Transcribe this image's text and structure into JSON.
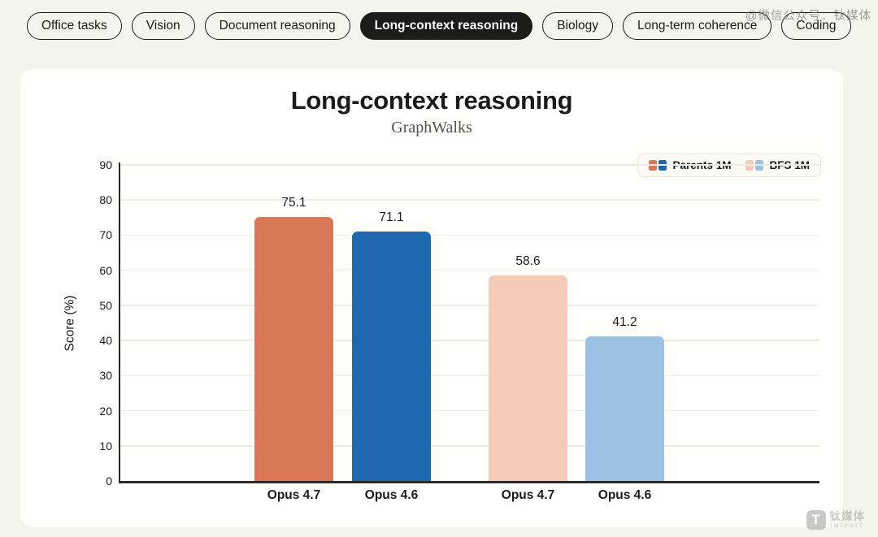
{
  "watermarks": {
    "top": "@微信公众号：钛媒体",
    "bottom_logo": "T",
    "bottom_cn": "钛媒体",
    "bottom_en": "TMTPOST"
  },
  "tabs": [
    {
      "label": "Office tasks",
      "active": false
    },
    {
      "label": "Vision",
      "active": false
    },
    {
      "label": "Document reasoning",
      "active": false
    },
    {
      "label": "Long-context reasoning",
      "active": true
    },
    {
      "label": "Biology",
      "active": false
    },
    {
      "label": "Long-term coherence",
      "active": false
    },
    {
      "label": "Coding",
      "active": false
    }
  ],
  "chart_data": {
    "type": "bar",
    "title": "Long-context reasoning",
    "subtitle": "GraphWalks",
    "ylabel": "Score (%)",
    "ylim": [
      0,
      90
    ],
    "ytick_step": 10,
    "grid": true,
    "legend_position": "top-right",
    "legend": [
      {
        "label": "Parents 1M",
        "colors": [
          "#d97757",
          "#1f67af"
        ]
      },
      {
        "label": "BFS 1M",
        "colors": [
          "#f5cbb8",
          "#9bc1e4"
        ]
      }
    ],
    "categories": [
      "Opus 4.7",
      "Opus 4.6",
      "Opus 4.7",
      "Opus 4.6"
    ],
    "bars": [
      {
        "category": "Opus 4.7",
        "series": "Parents 1M",
        "value": 75.1,
        "color": "#d97757"
      },
      {
        "category": "Opus 4.6",
        "series": "Parents 1M",
        "value": 71.1,
        "color": "#1f67af"
      },
      {
        "category": "Opus 4.7",
        "series": "BFS 1M",
        "value": 58.6,
        "color": "#f5cbb8"
      },
      {
        "category": "Opus 4.6",
        "series": "BFS 1M",
        "value": 41.2,
        "color": "#9bc1e4"
      }
    ]
  }
}
